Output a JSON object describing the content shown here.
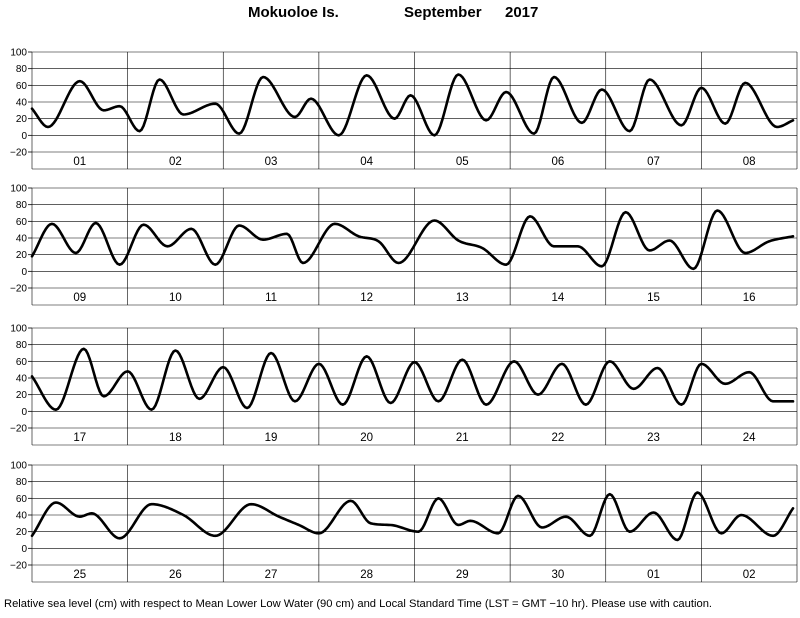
{
  "header": {
    "station": "Mokuoloe Is.",
    "month": "September",
    "year": "2017"
  },
  "footer_note": "Relative sea level (cm) with respect to Mean Lower Low Water (90 cm) and Local Standard Time (LST = GMT −10 hr). Please use with caution.",
  "chart_data": {
    "type": "line",
    "title": "Mokuoloe Is.  September 2017",
    "ylabel": "Relative sea level (cm)",
    "ylim": [
      -20,
      100
    ],
    "yticks": [
      -20,
      0,
      20,
      40,
      60,
      80,
      100
    ],
    "grid": true,
    "line_color": "#000000",
    "panels": [
      {
        "days": [
          "01",
          "02",
          "03",
          "04",
          "05",
          "06",
          "07",
          "08"
        ],
        "series": [
          {
            "x_hours": [
              0,
              4,
              12,
              18,
              22,
              27,
              32,
              38,
              46,
              52,
              58,
              66,
              70,
              77,
              84,
              91,
              95,
              101,
              107,
              114,
              119,
              126,
              131,
              138,
              143,
              150,
              155,
              163,
              168,
              174,
              179,
              187,
              191
            ],
            "values": [
              32,
              10,
              65,
              30,
              35,
              5,
              67,
              25,
              38,
              2,
              70,
              22,
              44,
              0,
              72,
              20,
              48,
              0,
              73,
              18,
              52,
              2,
              70,
              15,
              55,
              5,
              67,
              12,
              57,
              14,
              63,
              10,
              18
            ]
          }
        ]
      },
      {
        "days": [
          "09",
          "10",
          "11",
          "12",
          "13",
          "14",
          "15",
          "16"
        ],
        "series": [
          {
            "x_hours": [
              0,
              5,
              11,
              16,
              22,
              28,
              34,
              40,
              46,
              52,
              58,
              64,
              68,
              76,
              82,
              87,
              92,
              101,
              107,
              113,
              119,
              125,
              131,
              137,
              143,
              149,
              155,
              160,
              166,
              172,
              179,
              185,
              191
            ],
            "values": [
              18,
              57,
              22,
              58,
              8,
              56,
              30,
              51,
              8,
              55,
              38,
              45,
              10,
              57,
              42,
              36,
              10,
              61,
              37,
              28,
              8,
              66,
              30,
              30,
              6,
              71,
              25,
              37,
              3,
              73,
              22,
              36,
              42
            ]
          }
        ]
      },
      {
        "days": [
          "17",
          "18",
          "19",
          "20",
          "21",
          "22",
          "23",
          "24"
        ],
        "series": [
          {
            "x_hours": [
              0,
              6,
              13,
              18,
              24,
              30,
              36,
              42,
              48,
              54,
              60,
              66,
              72,
              78,
              84,
              90,
              96,
              102,
              108,
              114,
              121,
              127,
              133,
              139,
              145,
              151,
              157,
              163,
              168,
              174,
              180,
              186,
              191
            ],
            "values": [
              42,
              2,
              75,
              18,
              48,
              2,
              73,
              15,
              53,
              4,
              70,
              12,
              57,
              8,
              66,
              10,
              59,
              12,
              62,
              8,
              60,
              20,
              57,
              8,
              60,
              27,
              52,
              8,
              57,
              33,
              47,
              12,
              12
            ]
          }
        ]
      },
      {
        "days": [
          "25",
          "26",
          "27",
          "28",
          "29",
          "30",
          "01",
          "02"
        ],
        "series": [
          {
            "x_hours": [
              0,
              6,
              12,
              15,
              22,
              30,
              38,
              46,
              55,
              62,
              67,
              72,
              80,
              85,
              90,
              97,
              102,
              107,
              110,
              117,
              122,
              128,
              134,
              140,
              145,
              150,
              156,
              162,
              167,
              173,
              178,
              186,
              191
            ],
            "values": [
              15,
              55,
              38,
              42,
              12,
              53,
              40,
              15,
              53,
              38,
              28,
              18,
              57,
              30,
              28,
              20,
              60,
              28,
              33,
              18,
              63,
              25,
              38,
              15,
              65,
              20,
              43,
              10,
              67,
              18,
              40,
              15,
              48
            ]
          }
        ]
      }
    ]
  }
}
